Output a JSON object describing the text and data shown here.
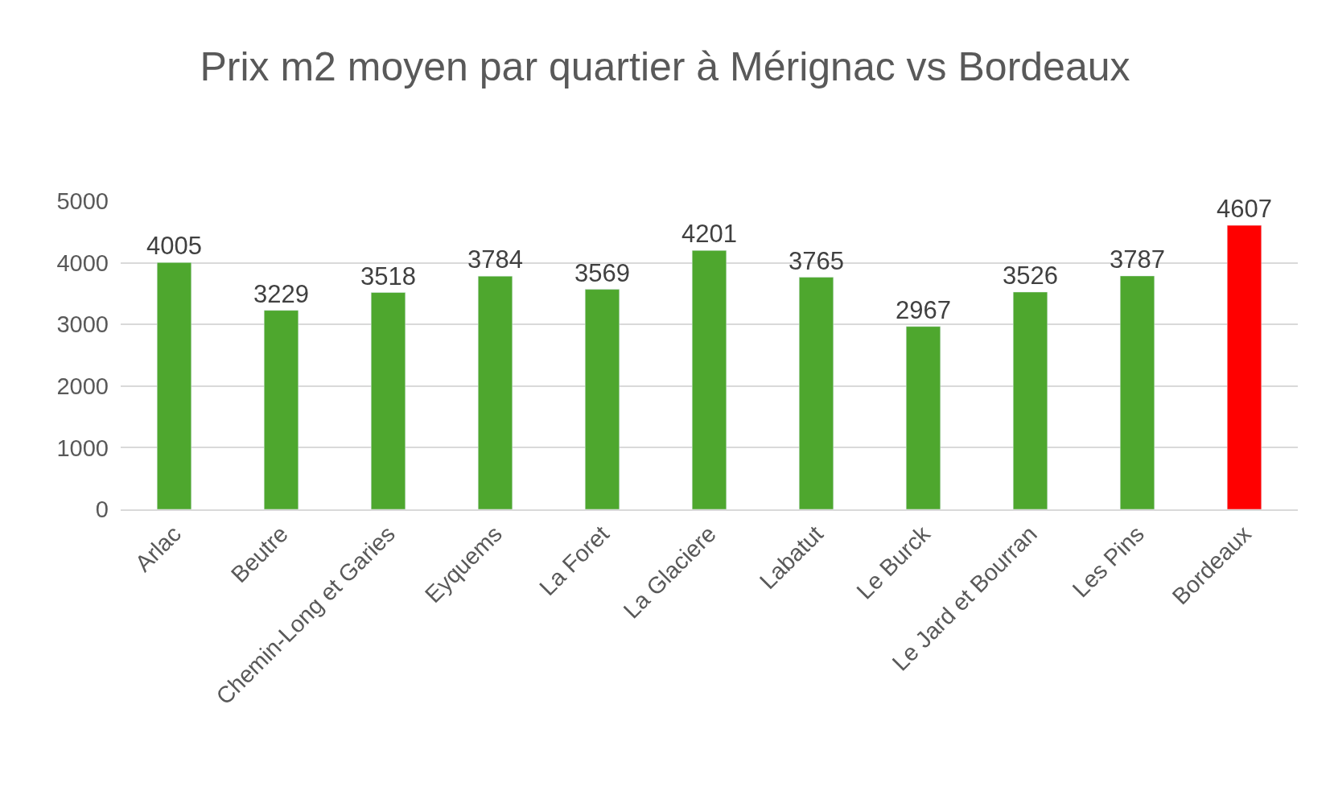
{
  "chart_data": {
    "type": "bar",
    "title": "Prix m2 moyen par quartier à Mérignac vs Bordeaux",
    "categories": [
      "Arlac",
      "Beutre",
      "Chemin-Long et Garies",
      "Eyquems",
      "La Foret",
      "La Glaciere",
      "Labatut",
      "Le Burck",
      "Le Jard et Bourran",
      "Les Pins",
      "Bordeaux"
    ],
    "values": [
      4005,
      3229,
      3518,
      3784,
      3569,
      4201,
      3765,
      2967,
      3526,
      3787,
      4607
    ],
    "colors": [
      "#4ea72e",
      "#4ea72e",
      "#4ea72e",
      "#4ea72e",
      "#4ea72e",
      "#4ea72e",
      "#4ea72e",
      "#4ea72e",
      "#4ea72e",
      "#4ea72e",
      "#ff0000"
    ],
    "ylim": [
      0,
      5000
    ],
    "yticks": [
      0,
      1000,
      2000,
      3000,
      4000,
      5000
    ],
    "grid": "y",
    "data_labels": true
  }
}
